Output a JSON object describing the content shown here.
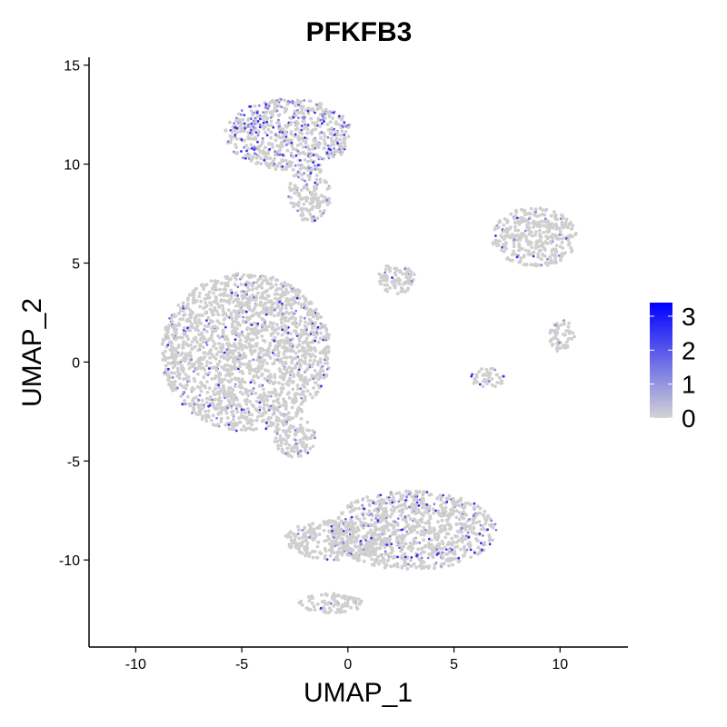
{
  "chart_data": {
    "type": "scatter",
    "title": "PFKFB3",
    "xlabel": "UMAP_1",
    "ylabel": "UMAP_2",
    "xlim": [
      -12.2,
      13.2
    ],
    "ylim": [
      -14.4,
      15.4
    ],
    "xticks": [
      -10,
      -5,
      0,
      5,
      10
    ],
    "xtick_labels": [
      "-10",
      "-5",
      "0",
      "5",
      "10"
    ],
    "yticks": [
      -10,
      -5,
      0,
      5,
      10,
      15
    ],
    "ytick_labels": [
      "-10",
      "-5",
      "0",
      "5",
      "10",
      "15"
    ],
    "grid": false,
    "color_scale": {
      "low_color": "#d3d3d3",
      "high_color": "#0000ff",
      "min": 0,
      "max": 3.4,
      "ticks": [
        0,
        1,
        2,
        3
      ],
      "tick_labels": [
        "0",
        "1",
        "2",
        "3"
      ]
    },
    "legend_position": "right",
    "clusters": [
      {
        "name": "upper",
        "cx": -2.8,
        "cy": 11.5,
        "rx": 3.0,
        "ry": 1.8,
        "expr_rate": 0.32
      },
      {
        "name": "upper-tail",
        "cx": -1.8,
        "cy": 8.5,
        "rx": 1.0,
        "ry": 1.4,
        "expr_rate": 0.12
      },
      {
        "name": "left",
        "cx": -4.8,
        "cy": 0.5,
        "rx": 4.0,
        "ry": 4.0,
        "expr_rate": 0.1
      },
      {
        "name": "left-sub",
        "cx": -2.5,
        "cy": -3.8,
        "rx": 1.0,
        "ry": 1.0,
        "expr_rate": 0.08
      },
      {
        "name": "bottom",
        "cx": 3.0,
        "cy": -8.5,
        "rx": 4.0,
        "ry": 2.0,
        "expr_rate": 0.18
      },
      {
        "name": "bottom-left",
        "cx": -0.5,
        "cy": -9.0,
        "rx": 2.5,
        "ry": 1.0,
        "expr_rate": 0.05
      },
      {
        "name": "bottom-tail",
        "cx": -0.8,
        "cy": -12.2,
        "rx": 1.5,
        "ry": 0.5,
        "expr_rate": 0.05
      },
      {
        "name": "small-middle",
        "cx": 2.3,
        "cy": 4.2,
        "rx": 0.9,
        "ry": 0.8,
        "expr_rate": 0.03
      },
      {
        "name": "right-upper",
        "cx": 8.8,
        "cy": 6.3,
        "rx": 2.0,
        "ry": 1.5,
        "expr_rate": 0.06
      },
      {
        "name": "right-middle",
        "cx": 10.1,
        "cy": 1.3,
        "rx": 0.6,
        "ry": 0.9,
        "expr_rate": 0.05
      },
      {
        "name": "right-lower",
        "cx": 6.6,
        "cy": -0.8,
        "rx": 0.8,
        "ry": 0.5,
        "expr_rate": 0.08
      }
    ]
  }
}
